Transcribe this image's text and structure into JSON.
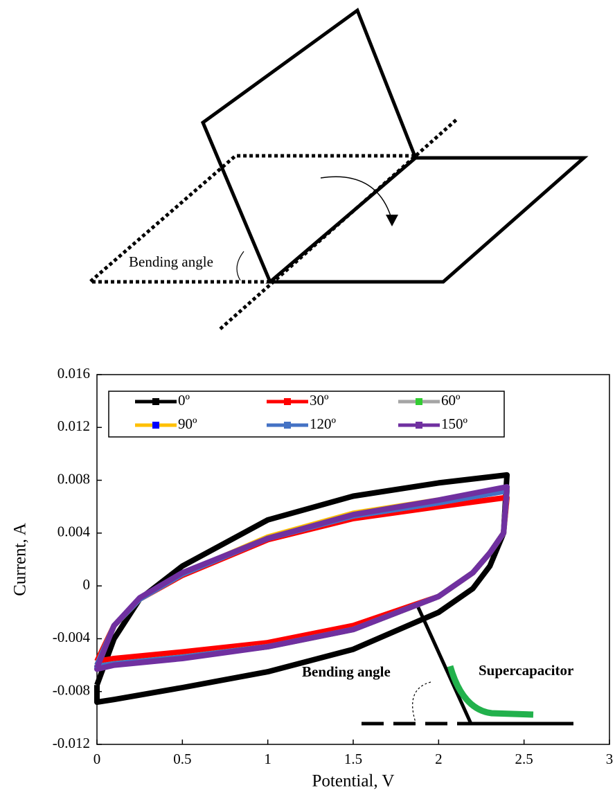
{
  "diagram": {
    "label": "Bending angle"
  },
  "chart_data": {
    "type": "line",
    "x_label": "Potential, V",
    "y_label": "Current, A",
    "annotations": [
      "Bending angle",
      "Supercapacitor"
    ],
    "xlim": [
      0,
      3
    ],
    "xticks": [
      0,
      0.5,
      1,
      1.5,
      2,
      2.5,
      3
    ],
    "ylim": [
      -0.012,
      0.016
    ],
    "yticks": [
      -0.012,
      -0.008,
      -0.004,
      0,
      0.004,
      0.008,
      0.012,
      0.016
    ],
    "series": [
      {
        "name": "0º",
        "color": "#000000",
        "marker_color": "#000000",
        "x": [
          0,
          0.1,
          0.25,
          0.5,
          1,
          1.5,
          2,
          2.4,
          2.38,
          2.3,
          2.2,
          2,
          1.5,
          1,
          0.5,
          0.1,
          0,
          0
        ],
        "values": [
          -0.0075,
          -0.004,
          -0.001,
          0.0015,
          0.005,
          0.0068,
          0.0078,
          0.0084,
          0.004,
          0.0015,
          -0.0002,
          -0.002,
          -0.0048,
          -0.0065,
          -0.0077,
          -0.0086,
          -0.0088,
          -0.0075
        ]
      },
      {
        "name": "30º",
        "color": "#ff0000",
        "marker_color": "#ff0000",
        "x": [
          0,
          0.1,
          0.25,
          0.5,
          1,
          1.5,
          2,
          2.4,
          2.38,
          2.3,
          2.2,
          2,
          1.5,
          1,
          0.5,
          0.1,
          0,
          0
        ],
        "values": [
          -0.0057,
          -0.003,
          -0.001,
          0.0008,
          0.0035,
          0.0051,
          0.006,
          0.0067,
          0.004,
          0.0025,
          0.001,
          -0.0008,
          -0.003,
          -0.0043,
          -0.005,
          -0.0055,
          -0.0057,
          -0.0057
        ]
      },
      {
        "name": "60º",
        "color": "#a5a5a5",
        "marker_color": "#33cc33",
        "x": [
          0,
          0.1,
          0.25,
          0.5,
          1,
          1.5,
          2,
          2.4,
          2.38,
          2.3,
          2.2,
          2,
          1.5,
          1,
          0.5,
          0.1,
          0,
          0
        ],
        "values": [
          -0.006,
          -0.003,
          -0.001,
          0.0009,
          0.0036,
          0.0053,
          0.0063,
          0.0072,
          0.004,
          0.0025,
          0.001,
          -0.0008,
          -0.0033,
          -0.0046,
          -0.0054,
          -0.0059,
          -0.0061,
          -0.006
        ]
      },
      {
        "name": "90º",
        "color": "#ffc000",
        "marker_color": "#0000ff",
        "x": [
          0,
          0.1,
          0.25,
          0.5,
          1,
          1.5,
          2,
          2.4,
          2.38,
          2.3,
          2.2,
          2,
          1.5,
          1,
          0.5,
          0.1,
          0,
          0
        ],
        "values": [
          -0.006,
          -0.003,
          -0.001,
          0.0009,
          0.0037,
          0.0055,
          0.0065,
          0.0073,
          0.004,
          0.0025,
          0.001,
          -0.0008,
          -0.0033,
          -0.0046,
          -0.0054,
          -0.0059,
          -0.0061,
          -0.006
        ]
      },
      {
        "name": "120º",
        "color": "#4472c4",
        "marker_color": "#4472c4",
        "x": [
          0,
          0.1,
          0.25,
          0.5,
          1,
          1.5,
          2,
          2.4,
          2.38,
          2.3,
          2.2,
          2,
          1.5,
          1,
          0.5,
          0.1,
          0,
          0
        ],
        "values": [
          -0.006,
          -0.003,
          -0.001,
          0.0009,
          0.0036,
          0.0053,
          0.0063,
          0.0072,
          0.004,
          0.0025,
          0.001,
          -0.0008,
          -0.0033,
          -0.0046,
          -0.0054,
          -0.0059,
          -0.0061,
          -0.006
        ]
      },
      {
        "name": "150º",
        "color": "#7030a0",
        "marker_color": "#7030a0",
        "x": [
          0,
          0.1,
          0.25,
          0.5,
          1,
          1.5,
          2,
          2.4,
          2.38,
          2.3,
          2.2,
          2,
          1.5,
          1,
          0.5,
          0.1,
          0,
          0
        ],
        "values": [
          -0.0062,
          -0.003,
          -0.0009,
          0.001,
          0.0036,
          0.0054,
          0.0065,
          0.0075,
          0.004,
          0.0025,
          0.001,
          -0.0008,
          -0.0033,
          -0.0046,
          -0.0055,
          -0.006,
          -0.0063,
          -0.0062
        ]
      }
    ]
  }
}
